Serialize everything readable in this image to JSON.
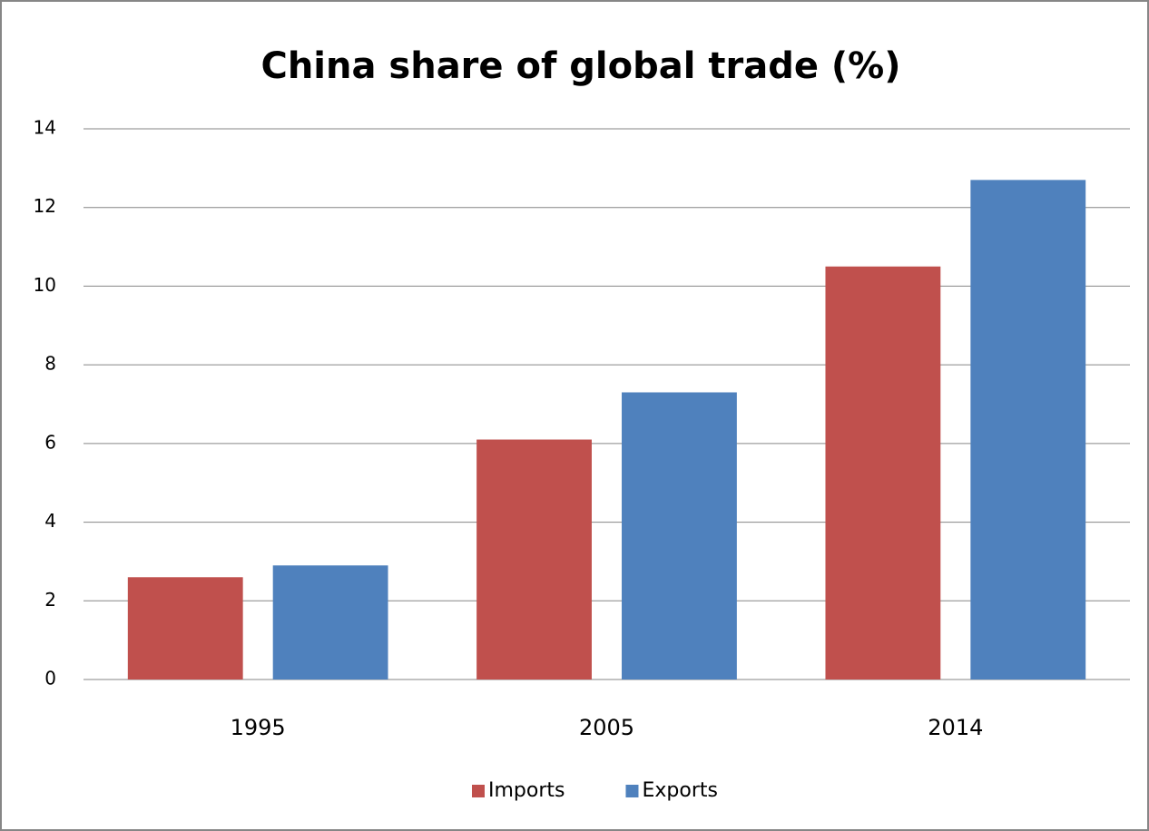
{
  "chart_data": {
    "type": "bar",
    "title": "China share of global trade (%)",
    "categories": [
      "1995",
      "2005",
      "2014"
    ],
    "series": [
      {
        "name": "Imports",
        "color": "#c0504d",
        "values": [
          2.6,
          6.1,
          10.5
        ]
      },
      {
        "name": "Exports",
        "color": "#4f81bd",
        "values": [
          2.9,
          7.3,
          12.7
        ]
      }
    ],
    "ylim": [
      0,
      14
    ],
    "yticks": [
      0,
      2,
      4,
      6,
      8,
      10,
      12,
      14
    ],
    "grid": true,
    "legend": "bottom"
  }
}
